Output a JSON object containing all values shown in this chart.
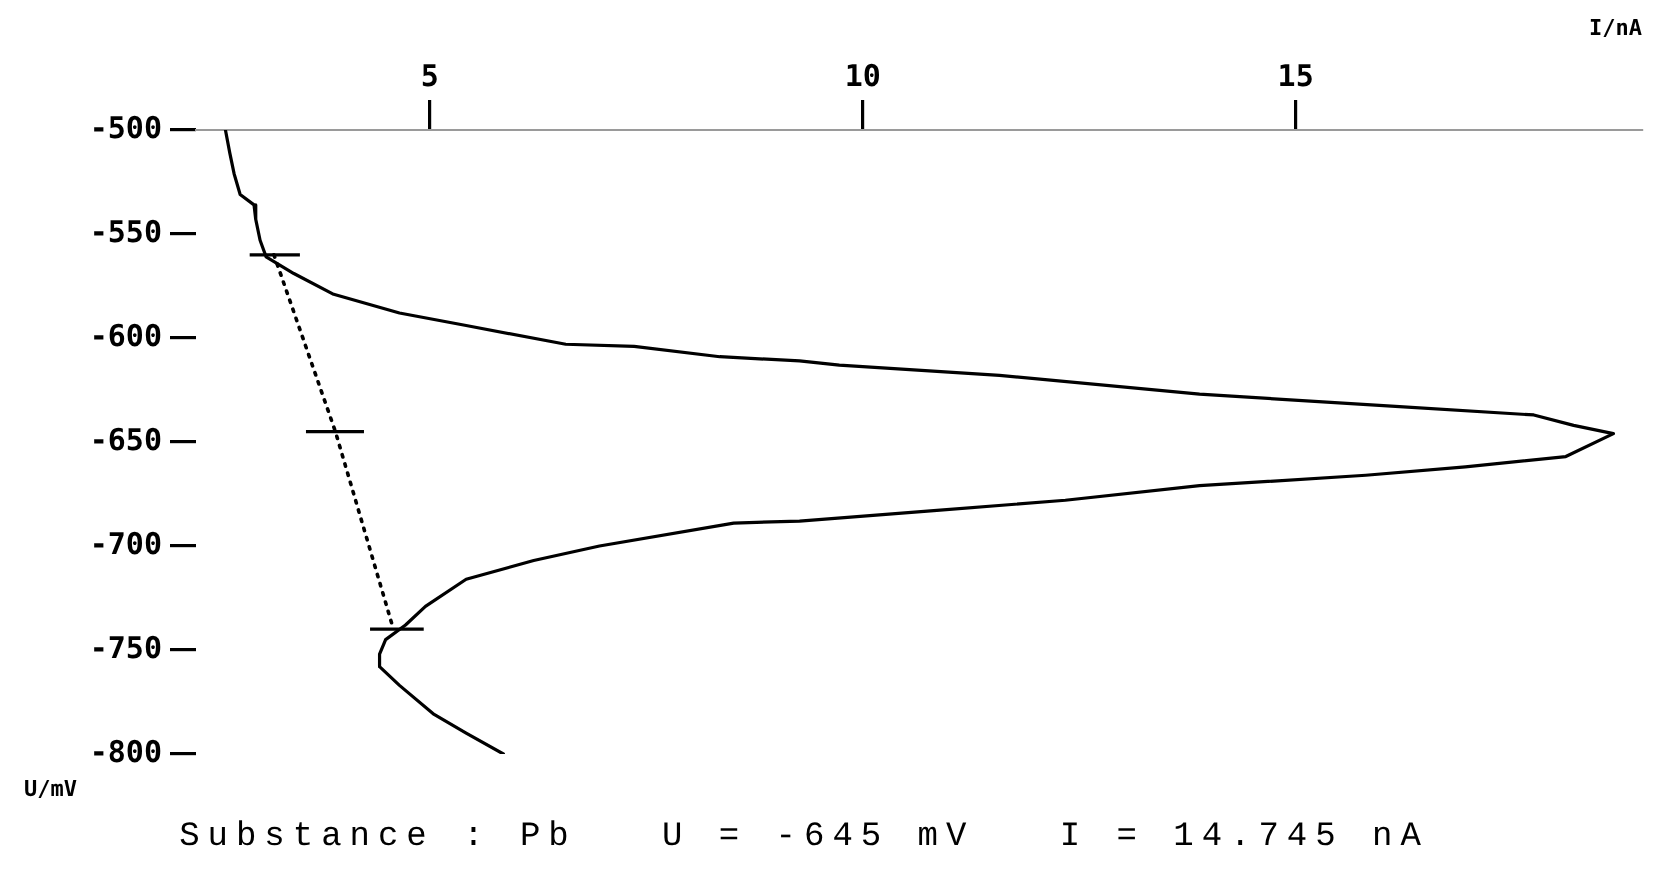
{
  "chart_data": {
    "type": "line",
    "xlabel": "I/nA",
    "ylabel": "U/mV",
    "annotations": [
      "Substance : Pb   U = -645 mV   I = 14.745 nA"
    ],
    "xlim": [
      2.3,
      19
    ],
    "xticks": [
      5,
      10,
      15
    ],
    "ylim": [
      -800,
      -500
    ],
    "yticks": [
      -800,
      -750,
      -700,
      -650,
      -600,
      -550,
      -500
    ],
    "grid": false,
    "legend": false,
    "marker": "none",
    "series": [
      {
        "color": "#000000",
        "line_style": "solid",
        "x": [
          2.64,
          2.69,
          2.74,
          2.81,
          2.97,
          2.99,
          3.04,
          3.11,
          3.43,
          3.89,
          4.65,
          5.42,
          6.57,
          7.36,
          8.35,
          9.27,
          9.73,
          11.58,
          13.89,
          16.2,
          17.75,
          18.21,
          18.67,
          18.12,
          16.96,
          15.81,
          13.89,
          12.34,
          10.82,
          9.27,
          8.51,
          6.96,
          6.2,
          5.42,
          4.95,
          4.72,
          4.49,
          4.42,
          4.42,
          4.65,
          5.05,
          5.42,
          5.85
        ],
        "values": [
          -500,
          -511,
          -521,
          -531,
          -536,
          -543,
          -553,
          -561,
          -569,
          -579,
          -588,
          -594,
          -603,
          -604,
          -609,
          -611,
          -613,
          -618,
          -627,
          -633,
          -637,
          -642,
          -646,
          -657,
          -662,
          -666,
          -671,
          -678,
          -683,
          -688,
          -689,
          -700,
          -707,
          -716,
          -729,
          -738,
          -745,
          -752,
          -758,
          -767,
          -781,
          -790,
          -800
        ]
      },
      {
        "color": "#000000",
        "line_style": "dotted",
        "x": [
          3.2,
          3.91,
          4.58
        ],
        "values": [
          -560,
          -645,
          -740
        ],
        "xerrors": [
          [
            2.92,
            3.5
          ],
          [
            3.57,
            4.24
          ],
          [
            4.31,
            4.93
          ]
        ]
      }
    ]
  }
}
